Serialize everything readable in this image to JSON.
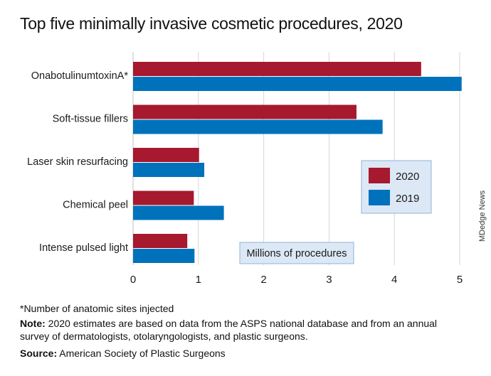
{
  "title": "Top five minimally invasive cosmetic procedures, 2020",
  "chart_data": {
    "type": "bar",
    "orientation": "horizontal",
    "categories": [
      "OnabotulinumtoxinA*",
      "Soft-tissue fillers",
      "Laser skin resurfacing",
      "Chemical peel",
      "Intense pulsed light"
    ],
    "series": [
      {
        "name": "2020",
        "color": "#a6192e",
        "values": [
          4.41,
          3.42,
          1.01,
          0.93,
          0.83
        ]
      },
      {
        "name": "2019",
        "color": "#0072bc",
        "values": [
          5.03,
          3.82,
          1.09,
          1.39,
          0.94
        ]
      }
    ],
    "xlim": [
      0,
      5
    ],
    "xticks": [
      0,
      1,
      2,
      3,
      4,
      5
    ],
    "unit_label": "Millions of procedures",
    "grid": true,
    "legend_position": "right"
  },
  "footnotes": {
    "asterisk": "*Number of anatomic sites injected",
    "note_label": "Note:",
    "note_text": " 2020 estimates are based on data from the ASPS national database and from an annual\nsurvey of dermatologists, otolaryngologists, and plastic surgeons.",
    "source_label": "Source:",
    "source_text": " American Society of Plastic Surgeons"
  },
  "watermark": "MDedge News",
  "colors": {
    "grid": "#d6d6d6",
    "label_box_fill": "#dce8f5",
    "label_box_stroke": "#8fb3d9"
  }
}
